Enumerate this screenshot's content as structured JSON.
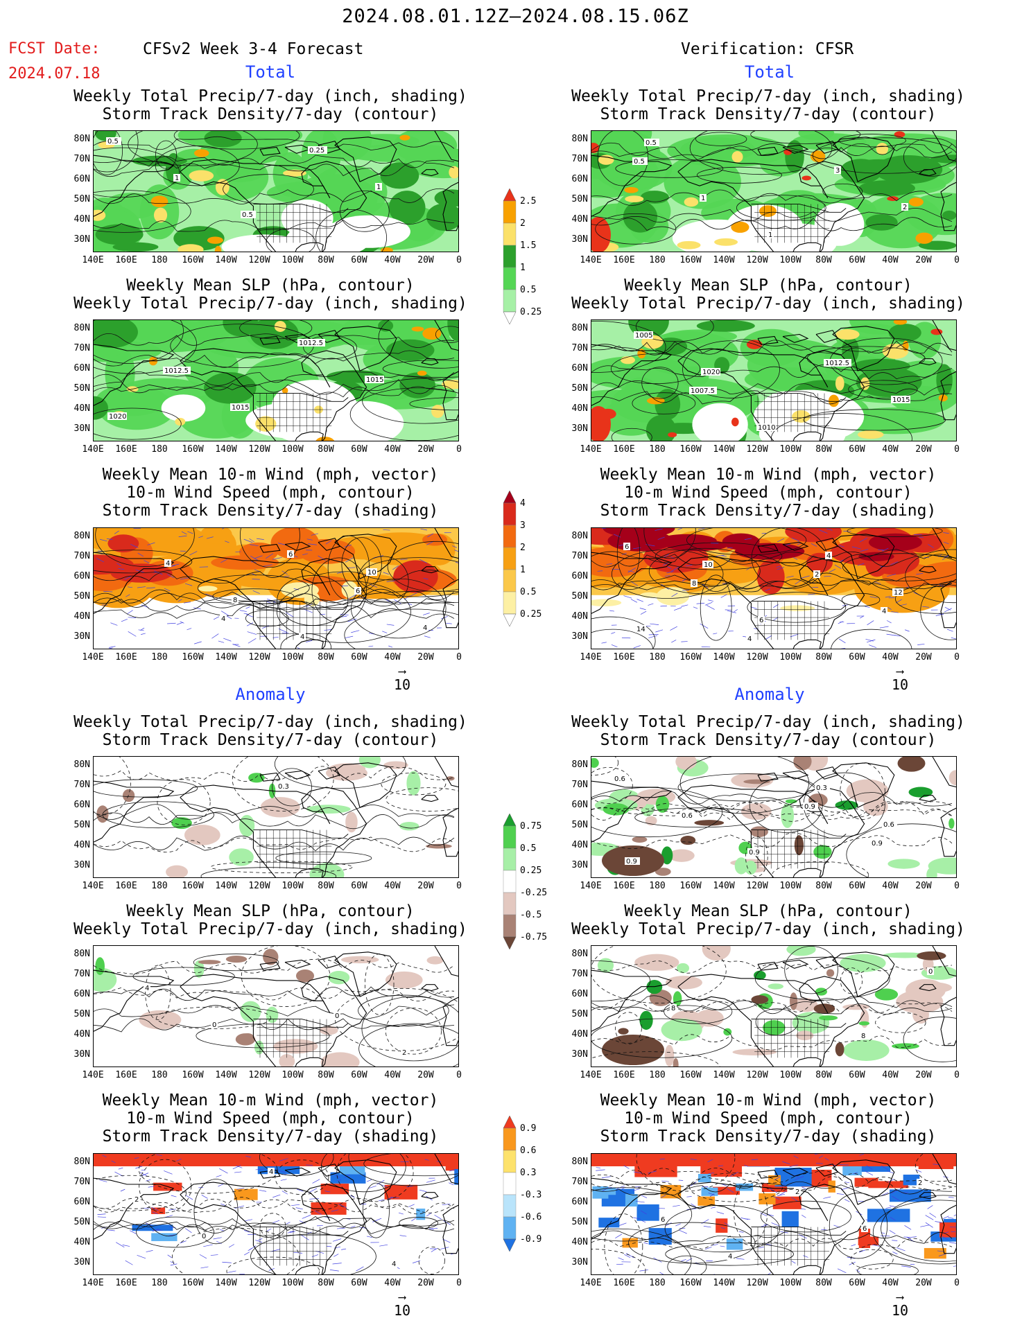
{
  "header": {
    "main_title": "2024.08.01.12Z–2024.08.15.06Z",
    "fcst_label": "FCST Date:",
    "fcst_date": "2024.07.18",
    "left_heading": "CFSv2 Week 3-4 Forecast",
    "right_heading": "Verification: CFSR"
  },
  "sections": {
    "total": "Total",
    "anomaly": "Anomaly"
  },
  "titles": {
    "precip_storm": "Weekly Total Precip/7-day (inch, shading)\nStorm Track Density/7-day (contour)",
    "slp_precip": "Weekly Mean SLP (hPa, contour)\nWeekly Total Precip/7-day (inch, shading)",
    "wind": "Weekly Mean 10-m Wind (mph, vector)\n10-m Wind Speed (mph, contour)\nStorm Track Density/7-day (shading)"
  },
  "axes": {
    "lat_labels": [
      "80N",
      "70N",
      "60N",
      "50N",
      "40N",
      "30N"
    ],
    "lon_labels": [
      "140E",
      "160E",
      "180",
      "160W",
      "140W",
      "120W",
      "100W",
      "80W",
      "60W",
      "40W",
      "20W",
      "0"
    ]
  },
  "vector_ref": "10",
  "colorbars": {
    "total_precip": {
      "labels": [
        "2.5",
        "2",
        "1.5",
        "1",
        "0.5",
        "0.25"
      ],
      "colors": [
        "#e8331a",
        "#f8a100",
        "#fbe16a",
        "#2ca02c",
        "#55d655",
        "#a6f0a6",
        "#ffffff"
      ]
    },
    "total_storm": {
      "labels": [
        "4",
        "3",
        "2",
        "1",
        "0.5",
        "0.25"
      ],
      "colors": [
        "#a5001a",
        "#d92a1c",
        "#f26a10",
        "#f7a013",
        "#fbc84a",
        "#fdf0a4",
        "#ffffff"
      ]
    },
    "anom_precip": {
      "labels": [
        "0.75",
        "0.5",
        "0.25",
        "-0.25",
        "-0.5",
        "-0.75"
      ],
      "colors": [
        "#1a9e2e",
        "#4fd04f",
        "#a7efa7",
        "#ffffff",
        "#e3c8c0",
        "#a98275",
        "#6b4637"
      ]
    },
    "anom_storm": {
      "labels": [
        "0.9",
        "0.6",
        "0.3",
        "-0.3",
        "-0.6",
        "-0.9"
      ],
      "colors": [
        "#ef3b20",
        "#f9981d",
        "#fde26c",
        "#ffffff",
        "#b9e4fb",
        "#5fb2f2",
        "#1f72e2"
      ]
    }
  },
  "contour_labels": {
    "p1l": [
      "0.5",
      "1",
      "0.5",
      "0.25",
      "1"
    ],
    "p1r": [
      "0.5",
      "1",
      "1",
      "3",
      "2",
      "0.5"
    ],
    "p2l": [
      "1012.5",
      "1015",
      "1012.5",
      "1015",
      "1020"
    ],
    "p2r": [
      "1007.5",
      "1010",
      "1012.5",
      "1015",
      "1005",
      "1020"
    ],
    "p3l": [
      "4",
      "6",
      "6",
      "4",
      "4",
      "8",
      "4",
      "10"
    ],
    "p3r": [
      "4",
      "2",
      "4",
      "6",
      "8",
      "6",
      "4",
      "12",
      "14",
      "10"
    ],
    "p4l": [
      "0.3"
    ],
    "p4r": [
      "0.9",
      "0.9",
      "0.6",
      "0.6",
      "0.9",
      "0.3",
      "0.6",
      "0.9"
    ],
    "p5l": [
      "0",
      "2",
      "4",
      "0"
    ],
    "p5r": [
      "8",
      "0",
      "8"
    ],
    "p6l": [
      "4",
      "2",
      "0",
      "4"
    ],
    "p6r": [
      "2",
      "6",
      "4",
      "2",
      "6"
    ]
  }
}
